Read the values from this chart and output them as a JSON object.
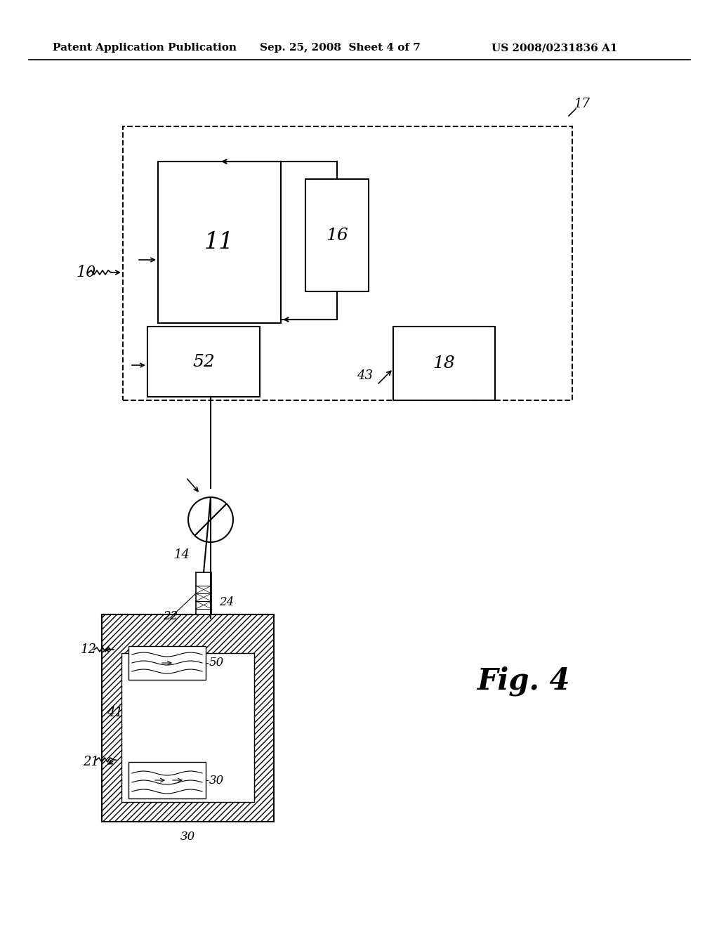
{
  "bg_color": "#ffffff",
  "header_left": "Patent Application Publication",
  "header_mid": "Sep. 25, 2008  Sheet 4 of 7",
  "header_right": "US 2008/0231836 A1",
  "fig_label": "Fig. 4",
  "label_10": "10",
  "label_11": "11",
  "label_12": "12",
  "label_14": "14",
  "label_16": "16",
  "label_17": "17",
  "label_18": "18",
  "label_21": "21",
  "label_22": "22",
  "label_24": "24",
  "label_30a": "30",
  "label_30b": "30",
  "label_41": "41",
  "label_43": "43",
  "label_50": "50",
  "label_52": "52"
}
